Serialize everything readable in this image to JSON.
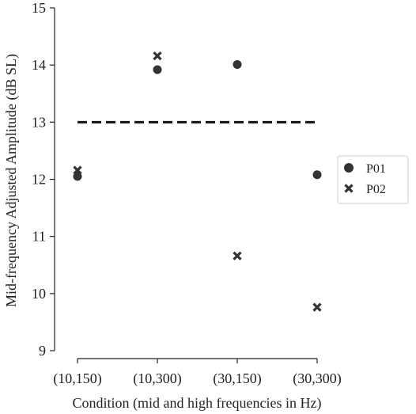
{
  "chart_data": {
    "type": "scatter",
    "title": "",
    "xlabel": "Condition (mid and high frequencies in Hz)",
    "ylabel": "Mid-frequency Adjusted Amplitude (dB SL)",
    "categories": [
      "(10,150)",
      "(10,300)",
      "(30,150)",
      "(30,300)"
    ],
    "ylim": [
      9,
      15
    ],
    "yticks": [
      9,
      10,
      11,
      12,
      13,
      14,
      15
    ],
    "grid": false,
    "legend_position": "right",
    "series": [
      {
        "name": "P01",
        "marker": "circle",
        "values": [
          12.05,
          13.92,
          14.01,
          12.08
        ]
      },
      {
        "name": "P02",
        "marker": "x",
        "values": [
          12.16,
          14.16,
          10.66,
          9.76
        ]
      }
    ],
    "reference_line": {
      "y": 13,
      "style": "dashed",
      "x_from_category": "(10,150)",
      "x_to_category": "(30,300)"
    },
    "colors": {
      "marker": "#333333",
      "axis": "#222222",
      "reference_line": "#111111"
    }
  }
}
